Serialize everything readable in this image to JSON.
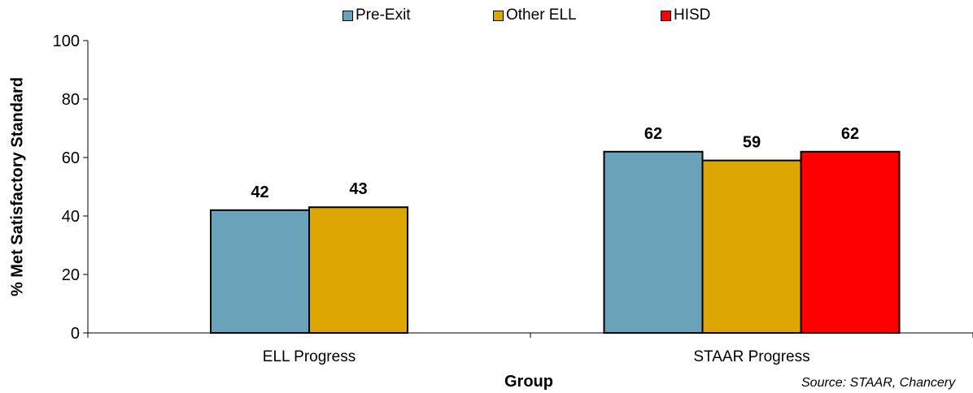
{
  "chart_data": {
    "type": "bar",
    "categories": [
      "ELL Progress",
      "STAAR Progress"
    ],
    "series": [
      {
        "name": "Pre-Exit",
        "color": "#6aa3b9",
        "values": [
          42,
          62
        ]
      },
      {
        "name": "Other ELL",
        "color": "#dda600",
        "values": [
          43,
          59
        ]
      },
      {
        "name": "HISD",
        "color": "#ff0000",
        "values": [
          null,
          62
        ]
      }
    ],
    "title": "",
    "xlabel": "Group",
    "ylabel": "% Met Satisfactory Standard",
    "ylim": [
      0,
      100
    ],
    "yticks": [
      "0",
      "20",
      "40",
      "60",
      "80",
      "100"
    ],
    "grid": false,
    "legend_position": "top",
    "data_labels": true
  },
  "source_note": "Source: STAAR, Chancery"
}
